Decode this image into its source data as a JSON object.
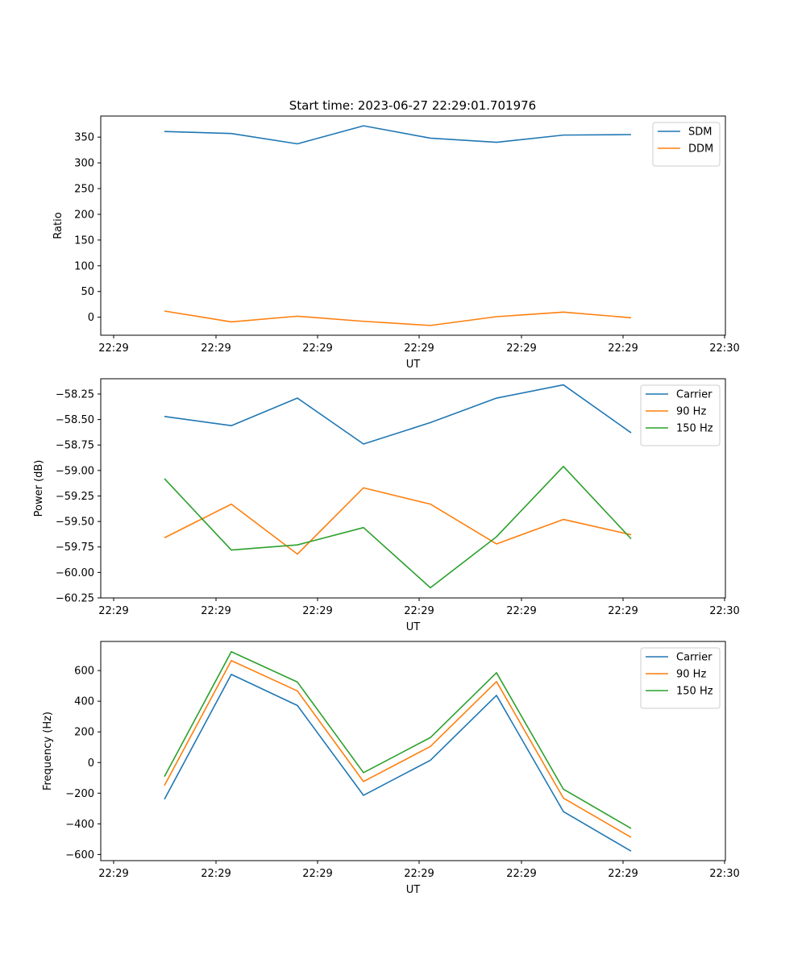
{
  "figure": {
    "title": "Start time: 2023-06-27 22:29:01.701976"
  },
  "colors": {
    "blue": "#1f77b4",
    "orange": "#ff7f0e",
    "green": "#2ca02c"
  },
  "chart_data": [
    {
      "type": "line",
      "xlabel": "UT",
      "ylabel": "Ratio",
      "xticklabels": [
        "22:29",
        "22:29",
        "22:29",
        "22:29",
        "22:29",
        "22:29",
        "22:30"
      ],
      "yticks": [
        0,
        50,
        100,
        150,
        200,
        250,
        300,
        350
      ],
      "ytick_labels": [
        "0",
        "50",
        "100",
        "150",
        "200",
        "250",
        "300",
        "350"
      ],
      "ylim": [
        -35,
        391
      ],
      "legend_position": "top-right",
      "series": [
        {
          "name": "SDM",
          "color": "#1f77b4",
          "values": [
            361,
            357,
            337,
            372,
            348,
            340,
            354,
            355
          ]
        },
        {
          "name": "DDM",
          "color": "#ff7f0e",
          "values": [
            12,
            -9,
            2,
            -8,
            -16,
            1,
            10,
            -1
          ]
        }
      ]
    },
    {
      "type": "line",
      "xlabel": "UT",
      "ylabel": "Power (dB)",
      "xticklabels": [
        "22:29",
        "22:29",
        "22:29",
        "22:29",
        "22:29",
        "22:29",
        "22:30"
      ],
      "yticks": [
        -60.25,
        -60.0,
        -59.75,
        -59.5,
        -59.25,
        -59.0,
        -58.75,
        -58.5,
        -58.25
      ],
      "ytick_labels": [
        "−60.25",
        "−60.00",
        "−59.75",
        "−59.50",
        "−59.25",
        "−59.00",
        "−58.75",
        "−58.50",
        "−58.25"
      ],
      "ylim": [
        -60.25,
        -58.1
      ],
      "legend_position": "top-right",
      "series": [
        {
          "name": "Carrier",
          "color": "#1f77b4",
          "values": [
            -58.47,
            -58.56,
            -58.29,
            -58.74,
            -58.53,
            -58.29,
            -58.16,
            -58.63
          ]
        },
        {
          "name": "90 Hz",
          "color": "#ff7f0e",
          "values": [
            -59.66,
            -59.33,
            -59.82,
            -59.17,
            -59.33,
            -59.72,
            -59.48,
            -59.63
          ]
        },
        {
          "name": "150 Hz",
          "color": "#2ca02c",
          "values": [
            -59.08,
            -59.78,
            -59.73,
            -59.56,
            -60.15,
            -59.65,
            -58.96,
            -59.67
          ]
        }
      ]
    },
    {
      "type": "line",
      "xlabel": "UT",
      "ylabel": "Frequency (Hz)",
      "xticklabels": [
        "22:29",
        "22:29",
        "22:29",
        "22:29",
        "22:29",
        "22:29",
        "22:30"
      ],
      "yticks": [
        -600,
        -400,
        -200,
        0,
        200,
        400,
        600
      ],
      "ytick_labels": [
        "−600",
        "−400",
        "−200",
        "0",
        "200",
        "400",
        "600"
      ],
      "ylim": [
        -640,
        790
      ],
      "legend_position": "top-right",
      "series": [
        {
          "name": "Carrier",
          "color": "#1f77b4",
          "values": [
            -240,
            575,
            372,
            -214,
            15,
            438,
            -320,
            -578
          ]
        },
        {
          "name": "90 Hz",
          "color": "#ff7f0e",
          "values": [
            -150,
            665,
            467,
            -124,
            105,
            528,
            -232,
            -488
          ]
        },
        {
          "name": "150 Hz",
          "color": "#2ca02c",
          "values": [
            -92,
            723,
            525,
            -66,
            163,
            586,
            -174,
            -430
          ]
        }
      ]
    }
  ]
}
